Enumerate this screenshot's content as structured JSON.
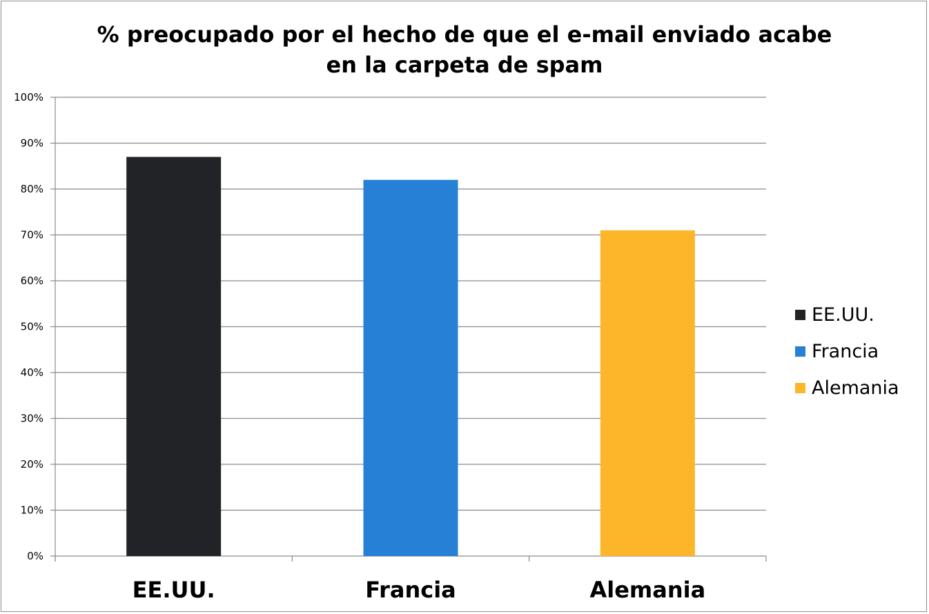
{
  "chart_data": {
    "type": "bar",
    "title_lines": [
      "% preocupado por el hecho de que el e-mail enviado acabe",
      "en la carpeta de spam"
    ],
    "categories": [
      "EE.UU.",
      "Francia",
      "Alemania"
    ],
    "values": [
      87,
      82,
      71
    ],
    "colors": [
      "#222326",
      "#2680d6",
      "#fdb52a"
    ],
    "ylim": [
      0,
      100
    ],
    "yticks": [
      0,
      10,
      20,
      30,
      40,
      50,
      60,
      70,
      80,
      90,
      100
    ],
    "ytick_labels": [
      "0%",
      "10%",
      "20%",
      "30%",
      "40%",
      "50%",
      "60%",
      "70%",
      "80%",
      "90%",
      "100%"
    ],
    "grid": true,
    "legend": {
      "placement": "right",
      "entries": [
        "EE.UU.",
        "Francia",
        "Alemania"
      ]
    },
    "xlabel": "",
    "ylabel": ""
  }
}
